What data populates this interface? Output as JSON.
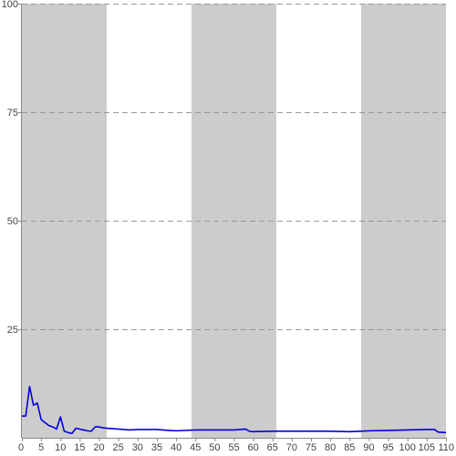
{
  "chart_data": {
    "type": "line",
    "title": "",
    "xlabel": "",
    "ylabel": "",
    "xlim": [
      0,
      110
    ],
    "ylim": [
      0,
      100
    ],
    "x_ticks": [
      0,
      5,
      10,
      15,
      20,
      25,
      30,
      35,
      40,
      45,
      50,
      55,
      60,
      65,
      70,
      75,
      80,
      85,
      90,
      95,
      100,
      105,
      110
    ],
    "y_ticks": [
      25,
      50,
      75,
      100
    ],
    "grid": "horizontal-dashed",
    "legend": "none",
    "shaded_bands": [
      [
        0,
        22
      ],
      [
        44,
        66
      ],
      [
        88,
        110
      ]
    ],
    "series": [
      {
        "color": "#0000dd",
        "x": [
          0,
          1,
          2,
          3,
          4,
          5,
          6,
          7,
          8,
          9,
          10,
          11,
          12,
          13,
          14,
          15,
          16,
          17,
          18,
          19,
          20,
          21,
          22,
          25,
          28,
          30,
          35,
          38,
          40,
          45,
          50,
          55,
          58,
          59,
          60,
          65,
          70,
          75,
          80,
          85,
          88,
          90,
          95,
          100,
          105,
          107,
          108,
          110
        ],
        "y": [
          5,
          5,
          11.8,
          7.5,
          8,
          4.2,
          3.5,
          2.8,
          2.5,
          2.0,
          4.8,
          1.5,
          1.2,
          1.0,
          2.2,
          2.0,
          1.8,
          1.6,
          1.5,
          2.5,
          2.5,
          2.3,
          2.2,
          2.0,
          1.8,
          1.9,
          1.9,
          1.7,
          1.6,
          1.8,
          1.8,
          1.8,
          2.0,
          1.5,
          1.4,
          1.5,
          1.5,
          1.5,
          1.5,
          1.4,
          1.5,
          1.6,
          1.7,
          1.8,
          1.9,
          1.9,
          1.3,
          1.2
        ]
      }
    ]
  }
}
